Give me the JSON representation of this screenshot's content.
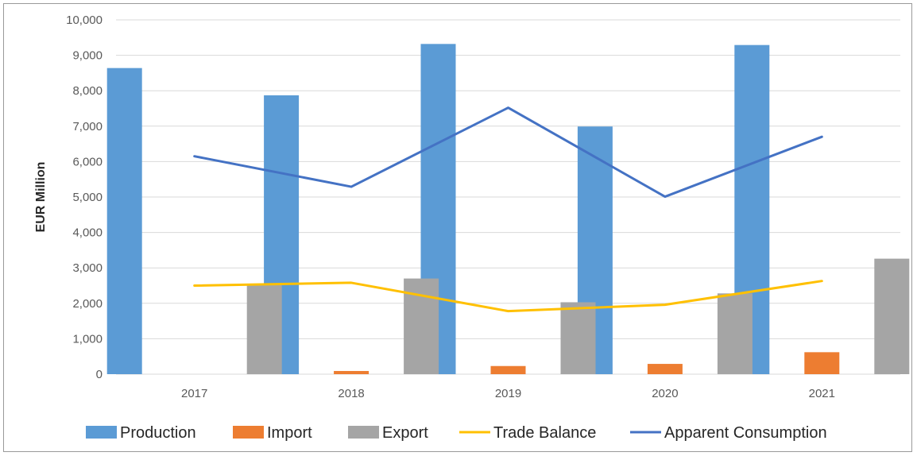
{
  "chart_data": {
    "type": "bar",
    "categories": [
      "2017",
      "2018",
      "2019",
      "2020",
      "2021"
    ],
    "series": [
      {
        "name": "Production",
        "kind": "bar",
        "color": "#5b9bd5",
        "values": [
          8640,
          7870,
          9320,
          6990,
          9290
        ]
      },
      {
        "name": "Import",
        "kind": "bar",
        "color": "#ed7d31",
        "values": [
          0,
          90,
          230,
          290,
          620
        ]
      },
      {
        "name": "Export",
        "kind": "bar",
        "color": "#a5a5a5",
        "values": [
          2520,
          2700,
          2030,
          2280,
          3260
        ]
      },
      {
        "name": "Trade Balance",
        "kind": "line",
        "color": "#ffc000",
        "values": [
          2500,
          2580,
          1780,
          1960,
          2630
        ]
      },
      {
        "name": "Apparent Consumption",
        "kind": "line",
        "color": "#4472c4",
        "values": [
          6150,
          5290,
          7520,
          5010,
          6700
        ]
      }
    ],
    "ylabel": "EUR Million",
    "xlabel": "",
    "ylim": [
      0,
      10000
    ],
    "yticks": [
      0,
      1000,
      2000,
      3000,
      4000,
      5000,
      6000,
      7000,
      8000,
      9000,
      10000
    ],
    "ytick_labels": [
      "0",
      "1,000",
      "2,000",
      "3,000",
      "4,000",
      "5,000",
      "6,000",
      "7,000",
      "8,000",
      "9,000",
      "10,000"
    ],
    "grid": true,
    "gridColor": "#d9d9d9",
    "legend": "bottom"
  }
}
